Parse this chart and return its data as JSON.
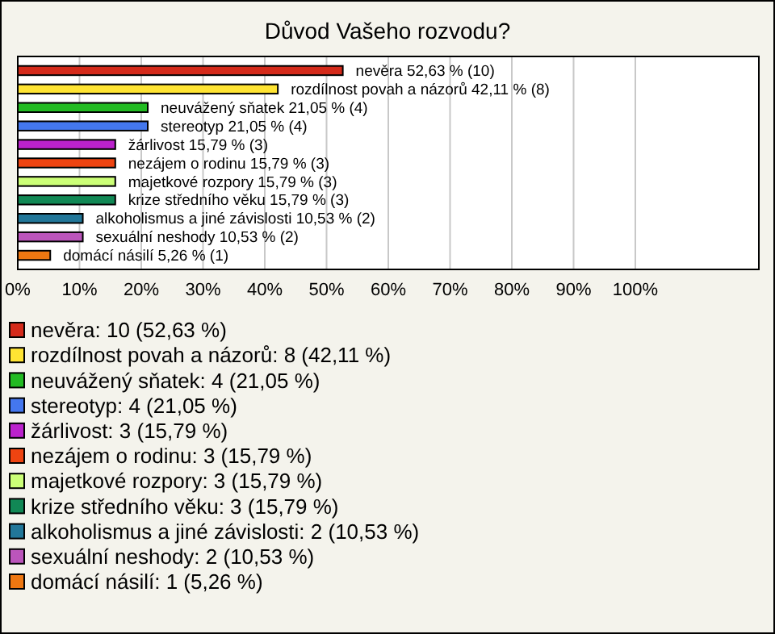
{
  "chart_data": {
    "type": "bar",
    "orientation": "horizontal",
    "title": "Důvod Vašeho rozvodu?",
    "categories": [
      null,
      null,
      null,
      null,
      null,
      null,
      null,
      null,
      null,
      null,
      null
    ],
    "values": [
      52.63,
      42.11,
      21.05,
      21.05,
      15.79,
      15.79,
      15.79,
      15.79,
      10.53,
      10.53,
      5.26
    ],
    "colors": [
      "#d42a1a",
      "#ffe433",
      "#22bb22",
      "#4477ee",
      "#bb22cc",
      "#ee4411",
      "#ccff77",
      "#118855",
      "#227799",
      "#bb55bb",
      "#ee7711"
    ],
    "value_labels": [
      "nevěra 52,63 % (10)",
      "rozdílnost povah a názorů 42,11 % (8)",
      "neuvážený sňatek 21,05 % (4)",
      "stereotyp 21,05 % (4)",
      "žárlivost 15,79 % (3)",
      "nezájem o rodinu 15,79 % (3)",
      "majetkové rozpory 15,79 % (3)",
      "krize středního věku 15,79 % (3)",
      "alkoholismus a jiné závislosti 10,53 % (2)",
      "sexuální neshody 10,53 % (2)",
      "domácí násilí 5,26 % (1)"
    ],
    "xlim": [
      0,
      120
    ],
    "xticks": [
      {
        "value": 0,
        "label": "0%"
      },
      {
        "value": 10,
        "label": "10%"
      },
      {
        "value": 20,
        "label": "20%"
      },
      {
        "value": 30,
        "label": "30%"
      },
      {
        "value": 40,
        "label": "40%"
      },
      {
        "value": 50,
        "label": "50%"
      },
      {
        "value": 60,
        "label": "60%"
      },
      {
        "value": 70,
        "label": "70%"
      },
      {
        "value": 80,
        "label": "80%"
      },
      {
        "value": 90,
        "label": "90%"
      },
      {
        "value": 100,
        "label": "100%"
      }
    ],
    "grid": "x",
    "annotations": [
      "nevěra: 10 (52,63 %)",
      "rozdílnost povah a názorů: 8 (42,11 %)",
      "neuvážený sňatek: 4 (21,05 %)",
      "stereotyp: 4 (21,05 %)",
      "žárlivost: 3 (15,79 %)",
      "nezájem o rodinu: 3 (15,79 %)",
      "majetkové rozpory: 3 (15,79 %)",
      "krize středního věku: 3 (15,79 %)",
      "alkoholismus a jiné závislosti: 2 (10,53 %)",
      "sexuální neshody: 2 (10,53 %)",
      "domácí násilí: 1 (5,26 %)"
    ]
  }
}
